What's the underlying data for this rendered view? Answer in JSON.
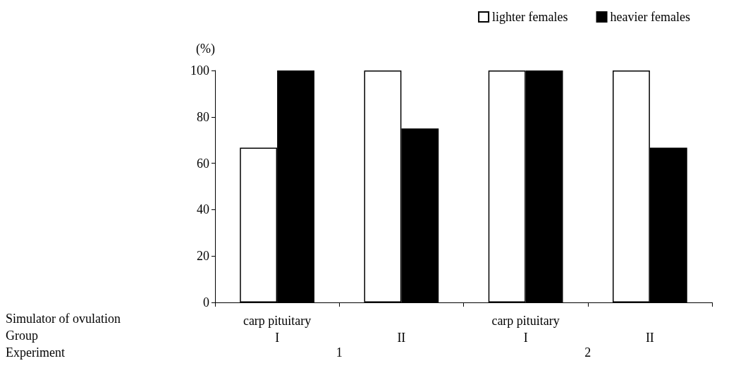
{
  "chart_data": {
    "type": "bar",
    "ylabel": "(%)",
    "categories": [
      "carp pituitary\nI",
      "II",
      "carp pituitary\nI",
      "II"
    ],
    "series": [
      {
        "name": "lighter females",
        "color": "#ffffff",
        "values": [
          66.7,
          100,
          100,
          100
        ]
      },
      {
        "name": "heavier females",
        "color": "#000000",
        "values": [
          100,
          75,
          100,
          66.7
        ]
      }
    ],
    "ylim": [
      0,
      100
    ],
    "yticks": [
      0,
      20,
      40,
      60,
      80,
      100
    ],
    "grid": false,
    "legend": "top right",
    "annotations": [
      "Simulator of ovulation",
      "Group",
      "Experiment",
      "1",
      "2"
    ]
  }
}
